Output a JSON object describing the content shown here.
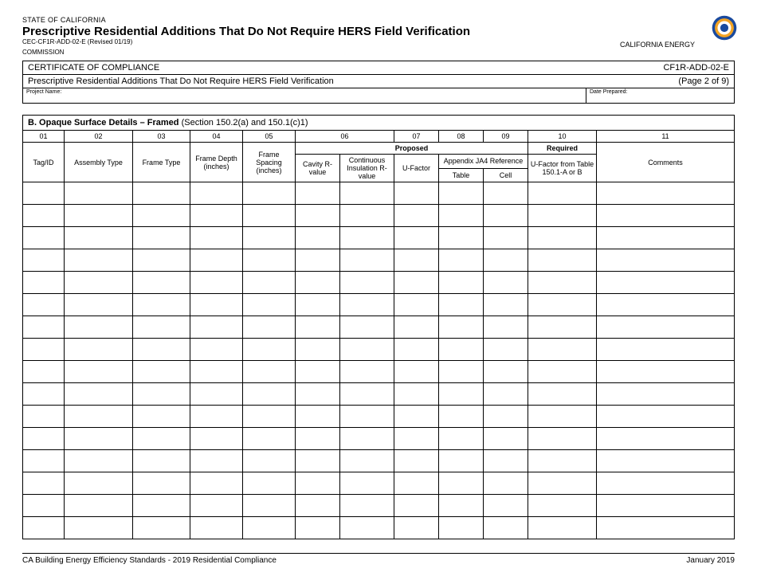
{
  "header": {
    "state_line": "STATE OF CALIFORNIA",
    "title": "Prescriptive Residential Additions That Do Not Require HERS Field Verification",
    "form_code": "CEC-CF1R-ADD-02-E (Revised 01/19)",
    "agency_right": "CALIFORNIA ENERGY",
    "commission": "COMMISSION"
  },
  "seal": {
    "outer_color": "#1a4a9e",
    "accent_color": "#f2a324",
    "inner_color": "#ffffff"
  },
  "cert": {
    "row1_left": "CERTIFICATE OF COMPLIANCE",
    "row1_right": "CF1R-ADD-02-E",
    "row2_left": "Prescriptive Residential Additions That Do Not Require HERS Field Verification",
    "row2_right": "(Page 2 of 9)",
    "proj_name_label": "Project Name:",
    "date_label": "Date Prepared:"
  },
  "section": {
    "label_bold": "B. Opaque Surface Details – Framed",
    "label_rest": " (Section 150.2(a) and 150.1(c)1)"
  },
  "columns": {
    "nums": [
      "01",
      "02",
      "03",
      "04",
      "05",
      "06",
      "07",
      "08",
      "09",
      "10",
      "11"
    ],
    "group_proposed": "Proposed",
    "group_required": "Required",
    "group_appendix": "Appendix JA4 Reference",
    "c01": "Tag/ID",
    "c02": "Assembly Type",
    "c03": "Frame Type",
    "c04": "Frame Depth (inches)",
    "c05": "Frame Spacing (inches)",
    "c06a": "Cavity R-value",
    "c06b": "Continuous Insulation R-value",
    "c07": "U-Factor",
    "c08": "Table",
    "c09": "Cell",
    "c10": "U-Factor from Table 150.1-A or B",
    "c11": "Comments"
  },
  "data_rows": 16,
  "footer": {
    "left": "CA Building Energy Efficiency Standards - 2019 Residential Compliance",
    "right": "January 2019"
  },
  "styles": {
    "text_color": "#000000",
    "background": "#ffffff",
    "border_color": "#000000",
    "header_fontsize": 15,
    "body_fontsize": 9
  }
}
